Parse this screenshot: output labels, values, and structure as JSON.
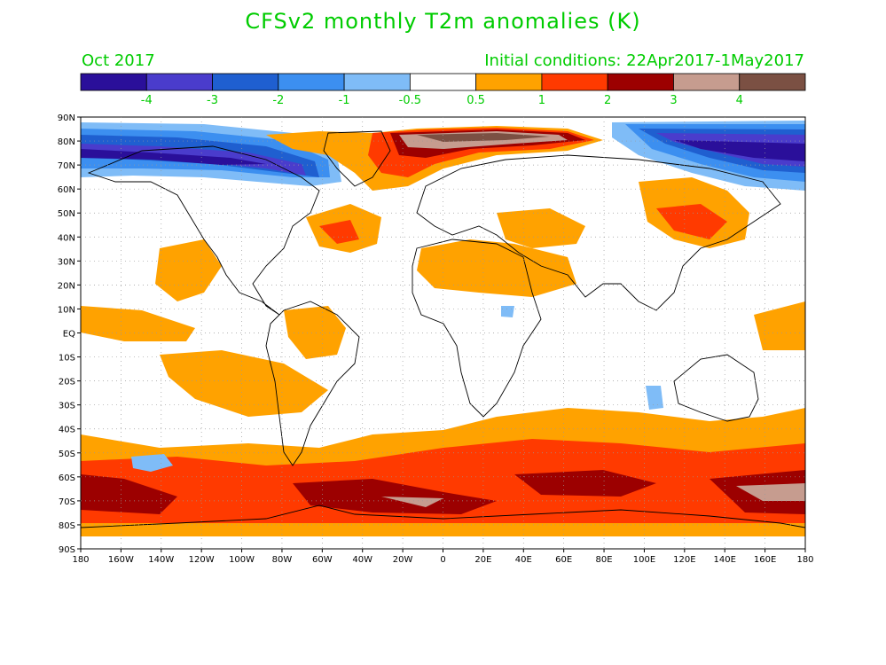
{
  "title": "CFSv2 monthly T2m anomalies (K)",
  "subtitle_left": "Oct 2017",
  "subtitle_right": "Initial conditions: 22Apr2017-1May2017",
  "colorbar": {
    "colors": [
      "#2a0f9a",
      "#4a3ccc",
      "#1f5fd0",
      "#3c8ff0",
      "#7fbcf7",
      "#ffffff",
      "#ffa200",
      "#ff3a00",
      "#9c0000",
      "#c69c8f",
      "#7b5043"
    ],
    "labels": [
      "-4",
      "-3",
      "-2",
      "-1",
      "-0.5",
      "0.5",
      "1",
      "2",
      "3",
      "4"
    ]
  },
  "axes": {
    "lat_labels": [
      "90N",
      "80N",
      "70N",
      "60N",
      "50N",
      "40N",
      "30N",
      "20N",
      "10N",
      "EQ",
      "10S",
      "20S",
      "30S",
      "40S",
      "50S",
      "60S",
      "70S",
      "80S",
      "90S"
    ],
    "lon_labels": [
      "180",
      "160W",
      "140W",
      "120W",
      "100W",
      "80W",
      "60W",
      "40W",
      "20W",
      "0",
      "20E",
      "40E",
      "60E",
      "80E",
      "100E",
      "120E",
      "140E",
      "160E",
      "180"
    ]
  }
}
